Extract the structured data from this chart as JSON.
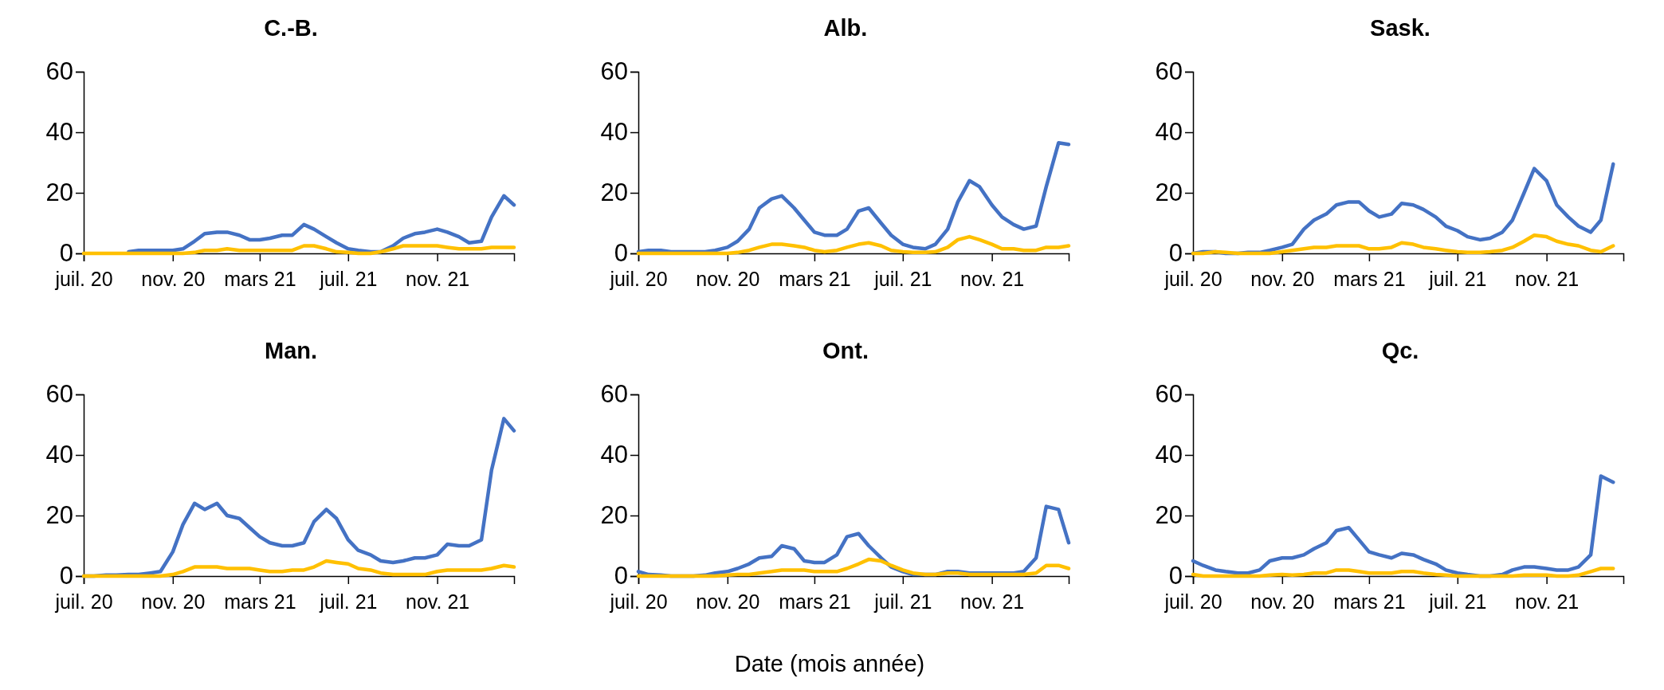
{
  "chart_data": [
    {
      "type": "line",
      "title": "C.-B.",
      "x": [
        "2020-07-01",
        "2020-07-15",
        "2020-08-01",
        "2020-08-15",
        "2020-09-01",
        "2020-09-15",
        "2020-10-01",
        "2020-10-15",
        "2020-11-01",
        "2020-11-15",
        "2020-12-01",
        "2020-12-15",
        "2021-01-01",
        "2021-01-15",
        "2021-02-01",
        "2021-02-15",
        "2021-03-01",
        "2021-03-15",
        "2021-04-01",
        "2021-04-15",
        "2021-05-01",
        "2021-05-15",
        "2021-06-01",
        "2021-06-15",
        "2021-07-01",
        "2021-07-15",
        "2021-08-01",
        "2021-08-15",
        "2021-09-01",
        "2021-09-15",
        "2021-10-01",
        "2021-10-15",
        "2021-11-01",
        "2021-11-15",
        "2021-12-01",
        "2021-12-15",
        "2022-01-01",
        "2022-01-15",
        "2022-02-01",
        "2022-02-15"
      ],
      "xlim": [
        "2020-07-01",
        "2022-02-15"
      ],
      "xticks": [
        {
          "value": "2020-07-01",
          "label": "juil. 20"
        },
        {
          "value": "2020-11-01",
          "label": "nov. 20"
        },
        {
          "value": "2021-03-01",
          "label": "mars 21"
        },
        {
          "value": "2021-07-01",
          "label": "juil. 21"
        },
        {
          "value": "2021-11-01",
          "label": "nov. 21"
        }
      ],
      "ylim": [
        0,
        60
      ],
      "yticks": [
        0,
        20,
        40,
        60
      ],
      "grid": false,
      "series": [
        {
          "color": "#4472c4",
          "values": [
            null,
            null,
            null,
            null,
            0.5,
            1,
            1,
            1,
            1,
            1.5,
            4,
            6.5,
            7,
            7,
            6,
            4.5,
            4.5,
            5,
            6,
            6,
            9.5,
            8,
            5.5,
            3.5,
            1.5,
            1,
            0.5,
            0.5,
            2.5,
            5,
            6.5,
            7,
            8,
            7,
            5.5,
            3.5,
            4,
            12,
            19,
            16
          ]
        },
        {
          "color": "#ffc000",
          "values": [
            0,
            0,
            0,
            0,
            0,
            0,
            0,
            0,
            0,
            0,
            0.3,
            1,
            1,
            1.5,
            1,
            1,
            1,
            1,
            1,
            1,
            2.5,
            2.5,
            1.5,
            0.5,
            0.3,
            0,
            0,
            0.5,
            1.5,
            2.5,
            2.5,
            2.5,
            2.5,
            2,
            1.5,
            1.5,
            1.5,
            2,
            2,
            2
          ]
        }
      ]
    },
    {
      "type": "line",
      "title": "Alb.",
      "x": [
        "2020-07-01",
        "2020-07-15",
        "2020-08-01",
        "2020-08-15",
        "2020-09-01",
        "2020-09-15",
        "2020-10-01",
        "2020-10-15",
        "2020-11-01",
        "2020-11-15",
        "2020-12-01",
        "2020-12-15",
        "2021-01-01",
        "2021-01-15",
        "2021-02-01",
        "2021-02-15",
        "2021-03-01",
        "2021-03-15",
        "2021-04-01",
        "2021-04-15",
        "2021-05-01",
        "2021-05-15",
        "2021-06-01",
        "2021-06-15",
        "2021-07-01",
        "2021-07-15",
        "2021-08-01",
        "2021-08-15",
        "2021-09-01",
        "2021-09-15",
        "2021-10-01",
        "2021-10-15",
        "2021-11-01",
        "2021-11-15",
        "2021-12-01",
        "2021-12-15",
        "2022-01-01",
        "2022-01-15",
        "2022-02-01",
        "2022-02-15"
      ],
      "xlim": [
        "2020-07-01",
        "2022-02-15"
      ],
      "xticks": [
        {
          "value": "2020-07-01",
          "label": "juil. 20"
        },
        {
          "value": "2020-11-01",
          "label": "nov. 20"
        },
        {
          "value": "2021-03-01",
          "label": "mars 21"
        },
        {
          "value": "2021-07-01",
          "label": "juil. 21"
        },
        {
          "value": "2021-11-01",
          "label": "nov. 21"
        }
      ],
      "ylim": [
        0,
        60
      ],
      "yticks": [
        0,
        20,
        40,
        60
      ],
      "grid": false,
      "series": [
        {
          "color": "#4472c4",
          "values": [
            0.5,
            1,
            1,
            0.5,
            0.5,
            0.5,
            0.5,
            1,
            2,
            4,
            8,
            15,
            18,
            19,
            15,
            11,
            7,
            6,
            6,
            8,
            14,
            15,
            10,
            6,
            3,
            2,
            1.5,
            3,
            8,
            17,
            24,
            22,
            16,
            12,
            9.5,
            8,
            9,
            22,
            36.5,
            36
          ]
        },
        {
          "color": "#ffc000",
          "values": [
            0,
            0,
            0,
            0,
            0,
            0,
            0,
            0,
            0,
            0.3,
            1,
            2,
            3,
            3,
            2.5,
            2,
            1,
            0.5,
            1,
            2,
            3,
            3.5,
            2.5,
            1,
            0.5,
            0.3,
            0.3,
            0.5,
            2,
            4.5,
            5.5,
            4.5,
            3,
            1.5,
            1.5,
            1,
            1,
            2,
            2,
            2.5
          ]
        }
      ]
    },
    {
      "type": "line",
      "title": "Sask.",
      "x": [
        "2020-07-01",
        "2020-07-15",
        "2020-08-01",
        "2020-08-15",
        "2020-09-01",
        "2020-09-15",
        "2020-10-01",
        "2020-10-15",
        "2020-11-01",
        "2020-11-15",
        "2020-12-01",
        "2020-12-15",
        "2021-01-01",
        "2021-01-15",
        "2021-02-01",
        "2021-02-15",
        "2021-03-01",
        "2021-03-15",
        "2021-04-01",
        "2021-04-15",
        "2021-05-01",
        "2021-05-15",
        "2021-06-01",
        "2021-06-15",
        "2021-07-01",
        "2021-07-15",
        "2021-08-01",
        "2021-08-15",
        "2021-09-01",
        "2021-09-15",
        "2021-10-01",
        "2021-10-15",
        "2021-11-01",
        "2021-11-15",
        "2021-12-01",
        "2021-12-15",
        "2022-01-01",
        "2022-01-15",
        "2022-02-01"
      ],
      "xlim": [
        "2020-07-01",
        "2022-02-15"
      ],
      "xticks": [
        {
          "value": "2020-07-01",
          "label": "juil. 20"
        },
        {
          "value": "2020-11-01",
          "label": "nov. 20"
        },
        {
          "value": "2021-03-01",
          "label": "mars 21"
        },
        {
          "value": "2021-07-01",
          "label": "juil. 21"
        },
        {
          "value": "2021-11-01",
          "label": "nov. 21"
        }
      ],
      "ylim": [
        0,
        60
      ],
      "yticks": [
        0,
        20,
        40,
        60
      ],
      "grid": false,
      "series": [
        {
          "color": "#4472c4",
          "values": [
            0,
            0.5,
            0.5,
            0,
            0,
            0.3,
            0.3,
            1,
            2,
            3,
            8,
            11,
            13,
            16,
            17,
            17,
            14,
            12,
            13,
            16.5,
            16,
            14.5,
            12,
            9,
            7.5,
            5.5,
            4.5,
            5,
            7,
            11,
            20,
            28,
            24,
            16,
            12,
            9,
            7,
            11,
            29.5
          ]
        },
        {
          "color": "#ffc000",
          "values": [
            0,
            0,
            0.5,
            0.3,
            0,
            0,
            0,
            0,
            0.5,
            1,
            1.5,
            2,
            2,
            2.5,
            2.5,
            2.5,
            1.5,
            1.5,
            2,
            3.5,
            3,
            2,
            1.5,
            1,
            0.5,
            0.3,
            0.3,
            0.5,
            1,
            2,
            4,
            6,
            5.5,
            4,
            3,
            2.5,
            1,
            0.5,
            2.5
          ]
        }
      ]
    },
    {
      "type": "line",
      "title": "Man.",
      "x": [
        "2020-07-01",
        "2020-07-15",
        "2020-08-01",
        "2020-08-15",
        "2020-09-01",
        "2020-09-15",
        "2020-10-01",
        "2020-10-15",
        "2020-11-01",
        "2020-11-15",
        "2020-12-01",
        "2020-12-15",
        "2021-01-01",
        "2021-01-15",
        "2021-02-01",
        "2021-02-15",
        "2021-03-01",
        "2021-03-15",
        "2021-04-01",
        "2021-04-15",
        "2021-05-01",
        "2021-05-15",
        "2021-06-01",
        "2021-06-15",
        "2021-07-01",
        "2021-07-15",
        "2021-08-01",
        "2021-08-15",
        "2021-09-01",
        "2021-09-15",
        "2021-10-01",
        "2021-10-15",
        "2021-11-01",
        "2021-11-15",
        "2021-12-01",
        "2021-12-15",
        "2022-01-01",
        "2022-01-15",
        "2022-02-01",
        "2022-02-15"
      ],
      "xlim": [
        "2020-07-01",
        "2022-02-15"
      ],
      "xticks": [
        {
          "value": "2020-07-01",
          "label": "juil. 20"
        },
        {
          "value": "2020-11-01",
          "label": "nov. 20"
        },
        {
          "value": "2021-03-01",
          "label": "mars 21"
        },
        {
          "value": "2021-07-01",
          "label": "juil. 21"
        },
        {
          "value": "2021-11-01",
          "label": "nov. 21"
        }
      ],
      "ylim": [
        0,
        60
      ],
      "yticks": [
        0,
        20,
        40,
        60
      ],
      "grid": false,
      "series": [
        {
          "color": "#4472c4",
          "values": [
            0,
            0,
            0.3,
            0.3,
            0.5,
            0.5,
            1,
            1.5,
            8,
            17,
            24,
            22,
            24,
            20,
            19,
            16,
            13,
            11,
            10,
            10,
            11,
            18,
            22,
            19,
            12,
            8.5,
            7,
            5,
            4.5,
            5,
            6,
            6,
            7,
            10.5,
            10,
            10,
            12,
            35,
            52,
            48
          ]
        },
        {
          "color": "#ffc000",
          "values": [
            0,
            0,
            0,
            0,
            0,
            0,
            0,
            0,
            0.5,
            1.5,
            3,
            3,
            3,
            2.5,
            2.5,
            2.5,
            2,
            1.5,
            1.5,
            2,
            2,
            3,
            5,
            4.5,
            4,
            2.5,
            2,
            1,
            0.5,
            0.5,
            0.5,
            0.5,
            1.5,
            2,
            2,
            2,
            2,
            2.5,
            3.5,
            3
          ]
        }
      ]
    },
    {
      "type": "line",
      "title": "Ont.",
      "xlabel": "Date (mois année)",
      "x": [
        "2020-07-01",
        "2020-07-15",
        "2020-08-01",
        "2020-08-15",
        "2020-09-01",
        "2020-09-15",
        "2020-10-01",
        "2020-10-15",
        "2020-11-01",
        "2020-11-15",
        "2020-12-01",
        "2020-12-15",
        "2021-01-01",
        "2021-01-15",
        "2021-02-01",
        "2021-02-15",
        "2021-03-01",
        "2021-03-15",
        "2021-04-01",
        "2021-04-15",
        "2021-05-01",
        "2021-05-15",
        "2021-06-01",
        "2021-06-15",
        "2021-07-01",
        "2021-07-15",
        "2021-08-01",
        "2021-08-15",
        "2021-09-01",
        "2021-09-15",
        "2021-10-01",
        "2021-10-15",
        "2021-11-01",
        "2021-11-15",
        "2021-12-01",
        "2021-12-15",
        "2022-01-01",
        "2022-01-15",
        "2022-02-01",
        "2022-02-15"
      ],
      "xlim": [
        "2020-07-01",
        "2022-02-15"
      ],
      "xticks": [
        {
          "value": "2020-07-01",
          "label": "juil. 20"
        },
        {
          "value": "2020-11-01",
          "label": "nov. 20"
        },
        {
          "value": "2021-03-01",
          "label": "mars 21"
        },
        {
          "value": "2021-07-01",
          "label": "juil. 21"
        },
        {
          "value": "2021-11-01",
          "label": "nov. 21"
        }
      ],
      "ylim": [
        0,
        60
      ],
      "yticks": [
        0,
        20,
        40,
        60
      ],
      "grid": false,
      "series": [
        {
          "color": "#4472c4",
          "values": [
            1.5,
            0.5,
            0.3,
            0,
            0,
            0,
            0.3,
            1,
            1.5,
            2.5,
            4,
            6,
            6.5,
            10,
            9,
            5,
            4.5,
            4.5,
            7,
            13,
            14,
            10,
            6,
            3,
            1.5,
            0.5,
            0.5,
            0.5,
            1.5,
            1.5,
            1,
            1,
            1,
            1,
            1,
            1.5,
            6,
            23,
            22,
            11
          ]
        },
        {
          "color": "#ffc000",
          "values": [
            0,
            0,
            0,
            0,
            0,
            0,
            0,
            0,
            0.3,
            0.5,
            0.5,
            1,
            1.5,
            2,
            2,
            2,
            1.5,
            1.5,
            1.5,
            2.5,
            4,
            5.5,
            5,
            3.5,
            2,
            1,
            0.5,
            0.5,
            1,
            1,
            0.5,
            0.5,
            0.5,
            0.5,
            0.5,
            0.5,
            1,
            3.5,
            3.5,
            2.5
          ]
        }
      ]
    },
    {
      "type": "line",
      "title": "Qc.",
      "x": [
        "2020-07-01",
        "2020-07-15",
        "2020-08-01",
        "2020-08-15",
        "2020-09-01",
        "2020-09-15",
        "2020-10-01",
        "2020-10-15",
        "2020-11-01",
        "2020-11-15",
        "2020-12-01",
        "2020-12-15",
        "2021-01-01",
        "2021-01-15",
        "2021-02-01",
        "2021-02-15",
        "2021-03-01",
        "2021-03-15",
        "2021-04-01",
        "2021-04-15",
        "2021-05-01",
        "2021-05-15",
        "2021-06-01",
        "2021-06-15",
        "2021-07-01",
        "2021-07-15",
        "2021-08-01",
        "2021-08-15",
        "2021-09-01",
        "2021-09-15",
        "2021-10-01",
        "2021-10-15",
        "2021-11-01",
        "2021-11-15",
        "2021-12-01",
        "2021-12-15",
        "2022-01-01",
        "2022-01-15",
        "2022-02-01"
      ],
      "xlim": [
        "2020-07-01",
        "2022-02-15"
      ],
      "xticks": [
        {
          "value": "2020-07-01",
          "label": "juil. 20"
        },
        {
          "value": "2020-11-01",
          "label": "nov. 20"
        },
        {
          "value": "2021-03-01",
          "label": "mars 21"
        },
        {
          "value": "2021-07-01",
          "label": "juil. 21"
        },
        {
          "value": "2021-11-01",
          "label": "nov. 21"
        }
      ],
      "ylim": [
        0,
        60
      ],
      "yticks": [
        0,
        20,
        40,
        60
      ],
      "grid": false,
      "series": [
        {
          "color": "#4472c4",
          "values": [
            5,
            3.5,
            2,
            1.5,
            1,
            1,
            2,
            5,
            6,
            6,
            7,
            9,
            11,
            15,
            16,
            12,
            8,
            7,
            6,
            7.5,
            7,
            5.5,
            4,
            2,
            1,
            0.5,
            0,
            0,
            0.5,
            2,
            3,
            3,
            2.5,
            2,
            2,
            3,
            7,
            33,
            31
          ]
        },
        {
          "color": "#ffc000",
          "values": [
            0.5,
            0,
            0,
            0,
            0,
            0,
            0,
            0.3,
            0.5,
            0.3,
            0.5,
            1,
            1,
            2,
            2,
            1.5,
            1,
            1,
            1,
            1.5,
            1.5,
            1,
            0.5,
            0.3,
            0,
            0,
            0,
            0,
            0,
            0,
            0.3,
            0.3,
            0.3,
            0,
            0,
            0.3,
            1.5,
            2.5,
            2.5
          ]
        }
      ]
    }
  ]
}
